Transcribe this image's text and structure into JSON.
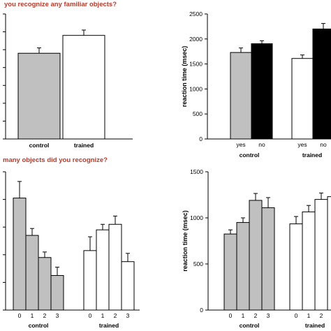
{
  "questions": {
    "top": "you recognize any familiar objects?",
    "bottom": "many objects did you recognize?",
    "color": "#c0392b"
  },
  "colors": {
    "control": "#c0c0c0",
    "trained": "#ffffff",
    "no_bar": "#000000",
    "axis": "#000000"
  },
  "chart_data": [
    {
      "id": "top-left",
      "type": "bar",
      "categories": [
        "control",
        "trained"
      ],
      "values": [
        48,
        58
      ],
      "errors": [
        3,
        3
      ],
      "fills": [
        "control",
        "trained"
      ],
      "ylim": [
        0,
        70
      ],
      "y_tick_values": [
        0,
        10,
        20,
        30,
        40,
        50,
        60,
        70
      ],
      "show_tick_labels": false,
      "ylabel": ""
    },
    {
      "id": "top-right",
      "type": "bar",
      "groups": [
        {
          "name": "control",
          "categories": [
            "yes",
            "no"
          ],
          "values": [
            1730,
            1905
          ],
          "errors": [
            90,
            60
          ],
          "fills": [
            "control",
            "no_bar"
          ]
        },
        {
          "name": "trained",
          "categories": [
            "yes",
            "no"
          ],
          "values": [
            1610,
            2200
          ],
          "errors": [
            70,
            110
          ],
          "fills": [
            "trained",
            "no_bar"
          ]
        }
      ],
      "ylim": [
        0,
        2500
      ],
      "y_ticks": [
        "0",
        "500",
        "1000",
        "1500",
        "2000",
        "2500"
      ],
      "y_tick_values": [
        0,
        500,
        1000,
        1500,
        2000,
        2500
      ],
      "show_tick_labels": true,
      "ylabel": "reaction time (msec)"
    },
    {
      "id": "bottom-left",
      "type": "bar",
      "groups": [
        {
          "name": "control",
          "categories": [
            "0",
            "1",
            "2",
            "3"
          ],
          "values": [
            40.5,
            27,
            19,
            12.5
          ],
          "errors": [
            6,
            2.5,
            2,
            3
          ],
          "fills": [
            "control",
            "control",
            "control",
            "control"
          ]
        },
        {
          "name": "trained",
          "categories": [
            "0",
            "1",
            "2",
            "3"
          ],
          "values": [
            21.5,
            29,
            31,
            17.5
          ],
          "errors": [
            5,
            2,
            3,
            3
          ],
          "fills": [
            "trained",
            "trained",
            "trained",
            "trained"
          ]
        }
      ],
      "ylim": [
        0,
        50
      ],
      "y_tick_values": [
        0,
        10,
        20,
        30,
        40,
        50
      ],
      "show_tick_labels": false,
      "ylabel": ""
    },
    {
      "id": "bottom-right",
      "type": "bar",
      "groups": [
        {
          "name": "control",
          "categories": [
            "0",
            "1",
            "2",
            "3"
          ],
          "values": [
            825,
            950,
            1190,
            1110
          ],
          "errors": [
            45,
            50,
            75,
            110
          ],
          "fills": [
            "control",
            "control",
            "control",
            "control"
          ]
        },
        {
          "name": "trained",
          "categories": [
            "0",
            "1",
            "2",
            "3"
          ],
          "values": [
            935,
            1065,
            1200,
            1230
          ],
          "errors": [
            80,
            70,
            70,
            100
          ],
          "fills": [
            "trained",
            "trained",
            "trained",
            "trained"
          ]
        }
      ],
      "ylim": [
        0,
        1500
      ],
      "y_ticks": [
        "0",
        "500",
        "1000",
        "1500"
      ],
      "y_tick_values": [
        0,
        500,
        1000,
        1500
      ],
      "show_tick_labels": true,
      "ylabel": "reaction time (msec)"
    }
  ]
}
